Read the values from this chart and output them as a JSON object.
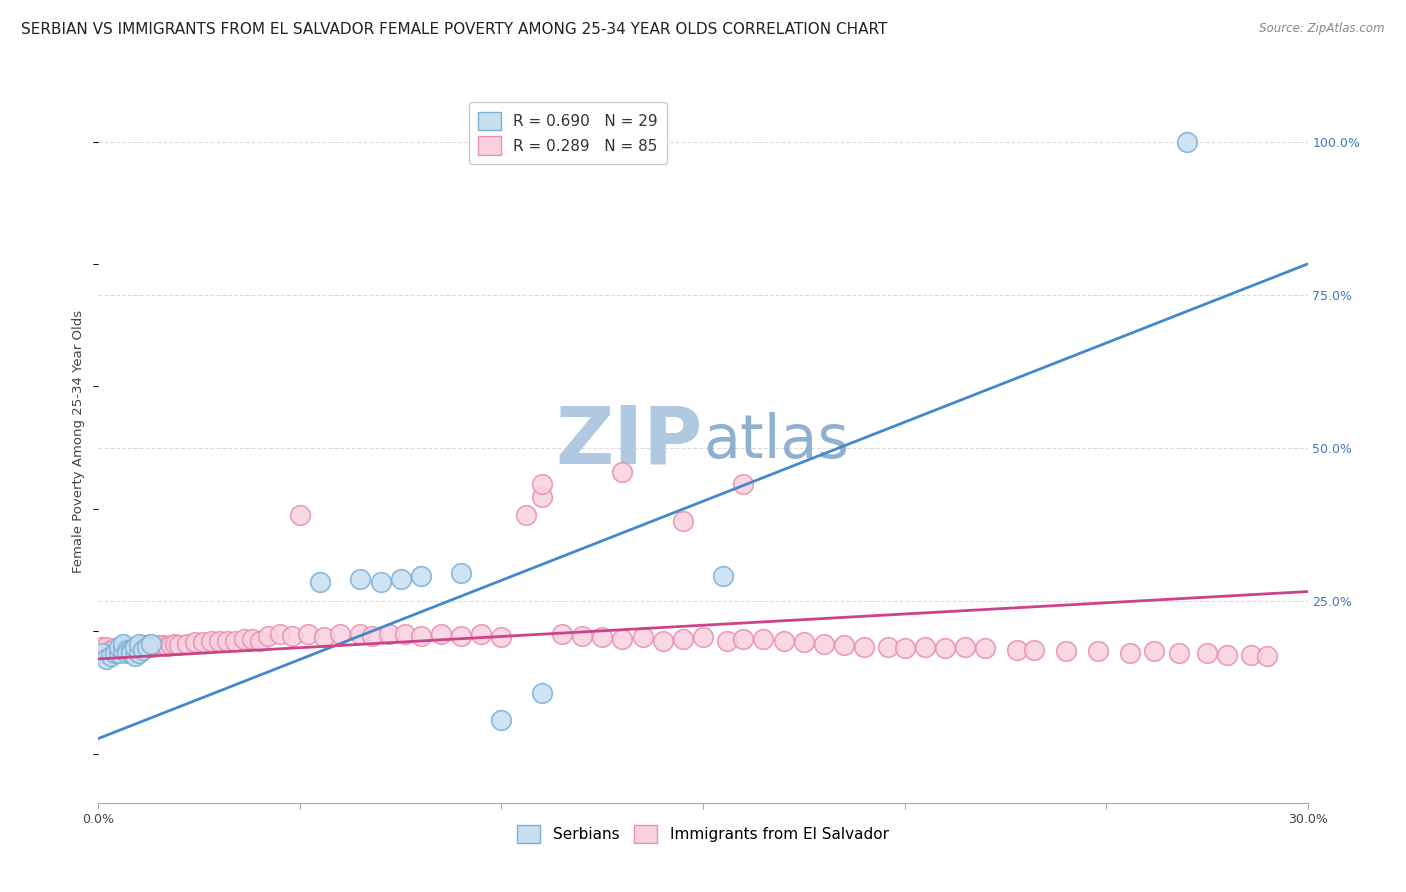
{
  "title": "SERBIAN VS IMMIGRANTS FROM EL SALVADOR FEMALE POVERTY AMONG 25-34 YEAR OLDS CORRELATION CHART",
  "source": "Source: ZipAtlas.com",
  "ylabel": "Female Poverty Among 25-34 Year Olds",
  "xlim": [
    0.0,
    0.3
  ],
  "ylim": [
    -0.08,
    1.1
  ],
  "xticks": [
    0.0,
    0.05,
    0.1,
    0.15,
    0.2,
    0.25,
    0.3
  ],
  "xtick_labels": [
    "0.0%",
    "",
    "",
    "",
    "",
    "",
    "30.0%"
  ],
  "ytick_right_vals": [
    0.0,
    0.25,
    0.5,
    0.75,
    1.0
  ],
  "ytick_right_labels": [
    "",
    "25.0%",
    "50.0%",
    "75.0%",
    "100.0%"
  ],
  "series1_name": "Serbians",
  "series1_line_color": "#4488cc",
  "series1_edge_color": "#7ab0d8",
  "series1_fill_color": "#c8dff0",
  "series1_R": "0.690",
  "series1_N": "29",
  "series2_name": "Immigrants from El Salvador",
  "series2_line_color": "#cc4488",
  "series2_edge_color": "#e890b0",
  "series2_fill_color": "#f8d0e0",
  "series2_R": "0.289",
  "series2_N": "85",
  "series1_x": [
    0.001,
    0.002,
    0.003,
    0.004,
    0.005,
    0.005,
    0.006,
    0.006,
    0.007,
    0.007,
    0.008,
    0.008,
    0.009,
    0.009,
    0.01,
    0.01,
    0.011,
    0.012,
    0.013,
    0.055,
    0.065,
    0.07,
    0.075,
    0.08,
    0.09,
    0.1,
    0.11,
    0.155,
    0.27
  ],
  "series1_y": [
    0.165,
    0.155,
    0.16,
    0.165,
    0.165,
    0.175,
    0.17,
    0.18,
    0.17,
    0.165,
    0.17,
    0.165,
    0.16,
    0.175,
    0.165,
    0.18,
    0.17,
    0.175,
    0.18,
    0.28,
    0.285,
    0.28,
    0.285,
    0.29,
    0.295,
    0.055,
    0.1,
    0.29,
    1.0
  ],
  "series2_x": [
    0.001,
    0.002,
    0.003,
    0.004,
    0.005,
    0.006,
    0.007,
    0.008,
    0.009,
    0.01,
    0.011,
    0.012,
    0.013,
    0.014,
    0.015,
    0.016,
    0.017,
    0.018,
    0.019,
    0.02,
    0.022,
    0.024,
    0.026,
    0.028,
    0.03,
    0.032,
    0.034,
    0.036,
    0.038,
    0.04,
    0.042,
    0.045,
    0.048,
    0.052,
    0.056,
    0.06,
    0.065,
    0.068,
    0.072,
    0.076,
    0.08,
    0.085,
    0.09,
    0.095,
    0.1,
    0.106,
    0.11,
    0.115,
    0.12,
    0.125,
    0.13,
    0.135,
    0.14,
    0.145,
    0.15,
    0.156,
    0.16,
    0.165,
    0.17,
    0.175,
    0.18,
    0.185,
    0.19,
    0.196,
    0.2,
    0.205,
    0.21,
    0.215,
    0.22,
    0.228,
    0.232,
    0.24,
    0.248,
    0.256,
    0.262,
    0.268,
    0.275,
    0.28,
    0.286,
    0.29,
    0.05,
    0.11,
    0.13,
    0.145,
    0.16
  ],
  "series2_y": [
    0.175,
    0.175,
    0.17,
    0.172,
    0.172,
    0.175,
    0.174,
    0.172,
    0.174,
    0.175,
    0.178,
    0.178,
    0.175,
    0.176,
    0.178,
    0.178,
    0.176,
    0.178,
    0.18,
    0.178,
    0.18,
    0.182,
    0.182,
    0.184,
    0.185,
    0.184,
    0.185,
    0.188,
    0.188,
    0.185,
    0.192,
    0.195,
    0.192,
    0.195,
    0.19,
    0.195,
    0.195,
    0.192,
    0.195,
    0.195,
    0.192,
    0.195,
    0.192,
    0.195,
    0.19,
    0.39,
    0.42,
    0.195,
    0.192,
    0.19,
    0.188,
    0.19,
    0.185,
    0.188,
    0.19,
    0.185,
    0.188,
    0.188,
    0.185,
    0.182,
    0.18,
    0.178,
    0.175,
    0.175,
    0.172,
    0.175,
    0.172,
    0.175,
    0.172,
    0.17,
    0.17,
    0.168,
    0.168,
    0.165,
    0.168,
    0.165,
    0.165,
    0.162,
    0.162,
    0.16,
    0.39,
    0.44,
    0.46,
    0.38,
    0.44
  ],
  "line1_x0": 0.0,
  "line1_x1": 0.3,
  "line1_y0": 0.025,
  "line1_y1": 0.8,
  "line2_x0": 0.0,
  "line2_x1": 0.3,
  "line2_y0": 0.155,
  "line2_y1": 0.265,
  "background_color": "#ffffff",
  "grid_color": "#dddddd",
  "title_fontsize": 11,
  "axis_label_fontsize": 9.5,
  "tick_fontsize": 9,
  "legend_fontsize": 11,
  "watermark_zip_color": "#b0c8e0",
  "watermark_atlas_color": "#90b0d0",
  "watermark_fontsize": 58
}
